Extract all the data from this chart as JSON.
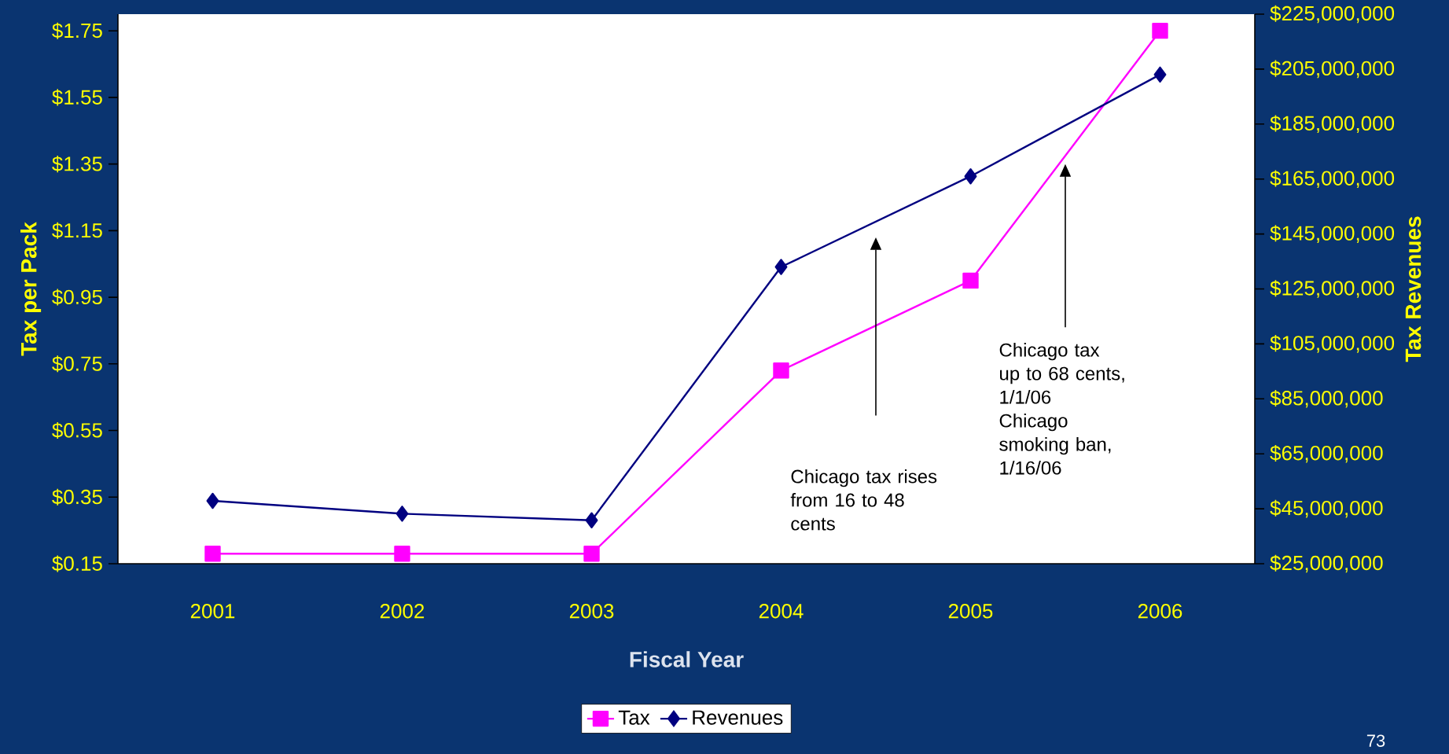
{
  "chart_data": {
    "type": "line",
    "xlabel": "Fiscal Year",
    "ylabel": "Tax per Pack",
    "y2label": "Tax Revenues",
    "categories": [
      "2001",
      "2002",
      "2003",
      "2004",
      "2005",
      "2006"
    ],
    "series": [
      {
        "name": "Tax",
        "color": "#ff00ff",
        "marker": "square",
        "values": [
          0.18,
          0.18,
          0.18,
          0.73,
          1.0,
          1.75
        ]
      },
      {
        "name": "Revenues",
        "color": "#000080",
        "marker": "diamond",
        "axis": "y2",
        "values": [
          47900000,
          43200000,
          40800000,
          133000000,
          166000000,
          203000000
        ]
      }
    ],
    "ylim": [
      0.15,
      1.8
    ],
    "yticks": [
      {
        "value": 0.15,
        "label": "$0.15"
      },
      {
        "value": 0.35,
        "label": "$0.35"
      },
      {
        "value": 0.55,
        "label": "$0.55"
      },
      {
        "value": 0.75,
        "label": "$0.75"
      },
      {
        "value": 0.95,
        "label": "$0.95"
      },
      {
        "value": 1.15,
        "label": "$1.15"
      },
      {
        "value": 1.35,
        "label": "$1.35"
      },
      {
        "value": 1.55,
        "label": "$1.55"
      },
      {
        "value": 1.75,
        "label": "$1.75"
      }
    ],
    "y2lim": [
      25000000,
      225000000
    ],
    "y2ticks": [
      {
        "value": 25000000,
        "label": "$25,000,000"
      },
      {
        "value": 45000000,
        "label": "$45,000,000"
      },
      {
        "value": 65000000,
        "label": "$65,000,000"
      },
      {
        "value": 85000000,
        "label": "$85,000,000"
      },
      {
        "value": 105000000,
        "label": "$105,000,000"
      },
      {
        "value": 125000000,
        "label": "$125,000,000"
      },
      {
        "value": 145000000,
        "label": "$145,000,000"
      },
      {
        "value": 165000000,
        "label": "$165,000,000"
      },
      {
        "value": 185000000,
        "label": "$185,000,000"
      },
      {
        "value": 205000000,
        "label": "$205,000,000"
      },
      {
        "value": 225000000,
        "label": "$225,000,000"
      }
    ],
    "legend": "bottom",
    "annotations": [
      "Chicago tax rises from 16 to 48 cents",
      "Chicago tax up to 68 cents, 1/1/06",
      "Chicago smoking ban, 1/16/06",
      "73"
    ]
  }
}
